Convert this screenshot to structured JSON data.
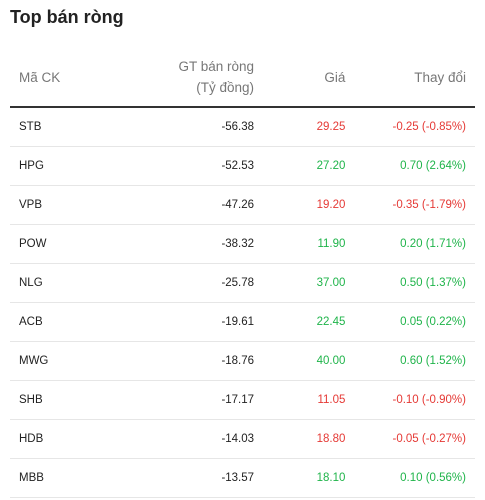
{
  "title": "Top bán ròng",
  "headers": {
    "code": "Mã CK",
    "value_line1": "GT bán ròng",
    "value_line2": "(Tỷ đồng)",
    "price": "Giá",
    "change": "Thay đổi"
  },
  "colors": {
    "up": "#1fb44a",
    "down": "#e53935"
  },
  "rows": [
    {
      "code": "STB",
      "value": "-56.38",
      "price": "29.25",
      "change": "-0.25 (-0.85%)",
      "trend": "down"
    },
    {
      "code": "HPG",
      "value": "-52.53",
      "price": "27.20",
      "change": "0.70 (2.64%)",
      "trend": "up"
    },
    {
      "code": "VPB",
      "value": "-47.26",
      "price": "19.20",
      "change": "-0.35 (-1.79%)",
      "trend": "down"
    },
    {
      "code": "POW",
      "value": "-38.32",
      "price": "11.90",
      "change": "0.20 (1.71%)",
      "trend": "up"
    },
    {
      "code": "NLG",
      "value": "-25.78",
      "price": "37.00",
      "change": "0.50 (1.37%)",
      "trend": "up"
    },
    {
      "code": "ACB",
      "value": "-19.61",
      "price": "22.45",
      "change": "0.05 (0.22%)",
      "trend": "up"
    },
    {
      "code": "MWG",
      "value": "-18.76",
      "price": "40.00",
      "change": "0.60 (1.52%)",
      "trend": "up"
    },
    {
      "code": "SHB",
      "value": "-17.17",
      "price": "11.05",
      "change": "-0.10 (-0.90%)",
      "trend": "down"
    },
    {
      "code": "HDB",
      "value": "-14.03",
      "price": "18.80",
      "change": "-0.05 (-0.27%)",
      "trend": "down"
    },
    {
      "code": "MBB",
      "value": "-13.57",
      "price": "18.10",
      "change": "0.10 (0.56%)",
      "trend": "up"
    }
  ]
}
